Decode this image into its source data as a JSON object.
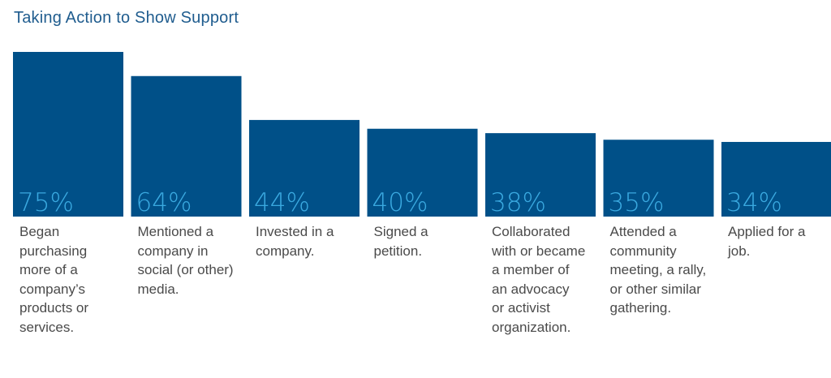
{
  "chart_data": {
    "type": "bar",
    "title": "Taking Action to Show Support",
    "categories": [
      "Began purchasing more of a company’s products or services.",
      "Mentioned a company in social (or other) media.",
      "Invested in a company.",
      "Signed a petition.",
      "Collaborated with or became a member of an advocacy or activist organization.",
      "Attended a community meeting, a rally, or other similar gathering.",
      "Applied for a job."
    ],
    "category_lines": [
      [
        "Began",
        "purchasing",
        "more of a",
        "company’s",
        "products or",
        "services."
      ],
      [
        "Mentioned a",
        "company in",
        "social (or other)",
        "media."
      ],
      [
        "Invested in a",
        "company."
      ],
      [
        "Signed a",
        "petition."
      ],
      [
        "Collaborated",
        "with or became",
        "a member of",
        "an advocacy",
        "or activist",
        "organization."
      ],
      [
        "Attended a",
        "community",
        "meeting, a rally,",
        "or other similar",
        "gathering."
      ],
      [
        "Applied for a",
        "job."
      ]
    ],
    "values": [
      75,
      64,
      44,
      40,
      38,
      35,
      34
    ],
    "value_labels": [
      "75%",
      "64%",
      "44%",
      "40%",
      "38%",
      "35%",
      "34%"
    ],
    "unit": "%",
    "xlabel": "",
    "ylabel": "",
    "ylim": [
      0,
      75
    ],
    "grid": false,
    "colors": {
      "bar": "#005088",
      "value_label": "#3aa9e0",
      "title": "#1f5c8e",
      "category_text": "#4a4a4a"
    }
  }
}
